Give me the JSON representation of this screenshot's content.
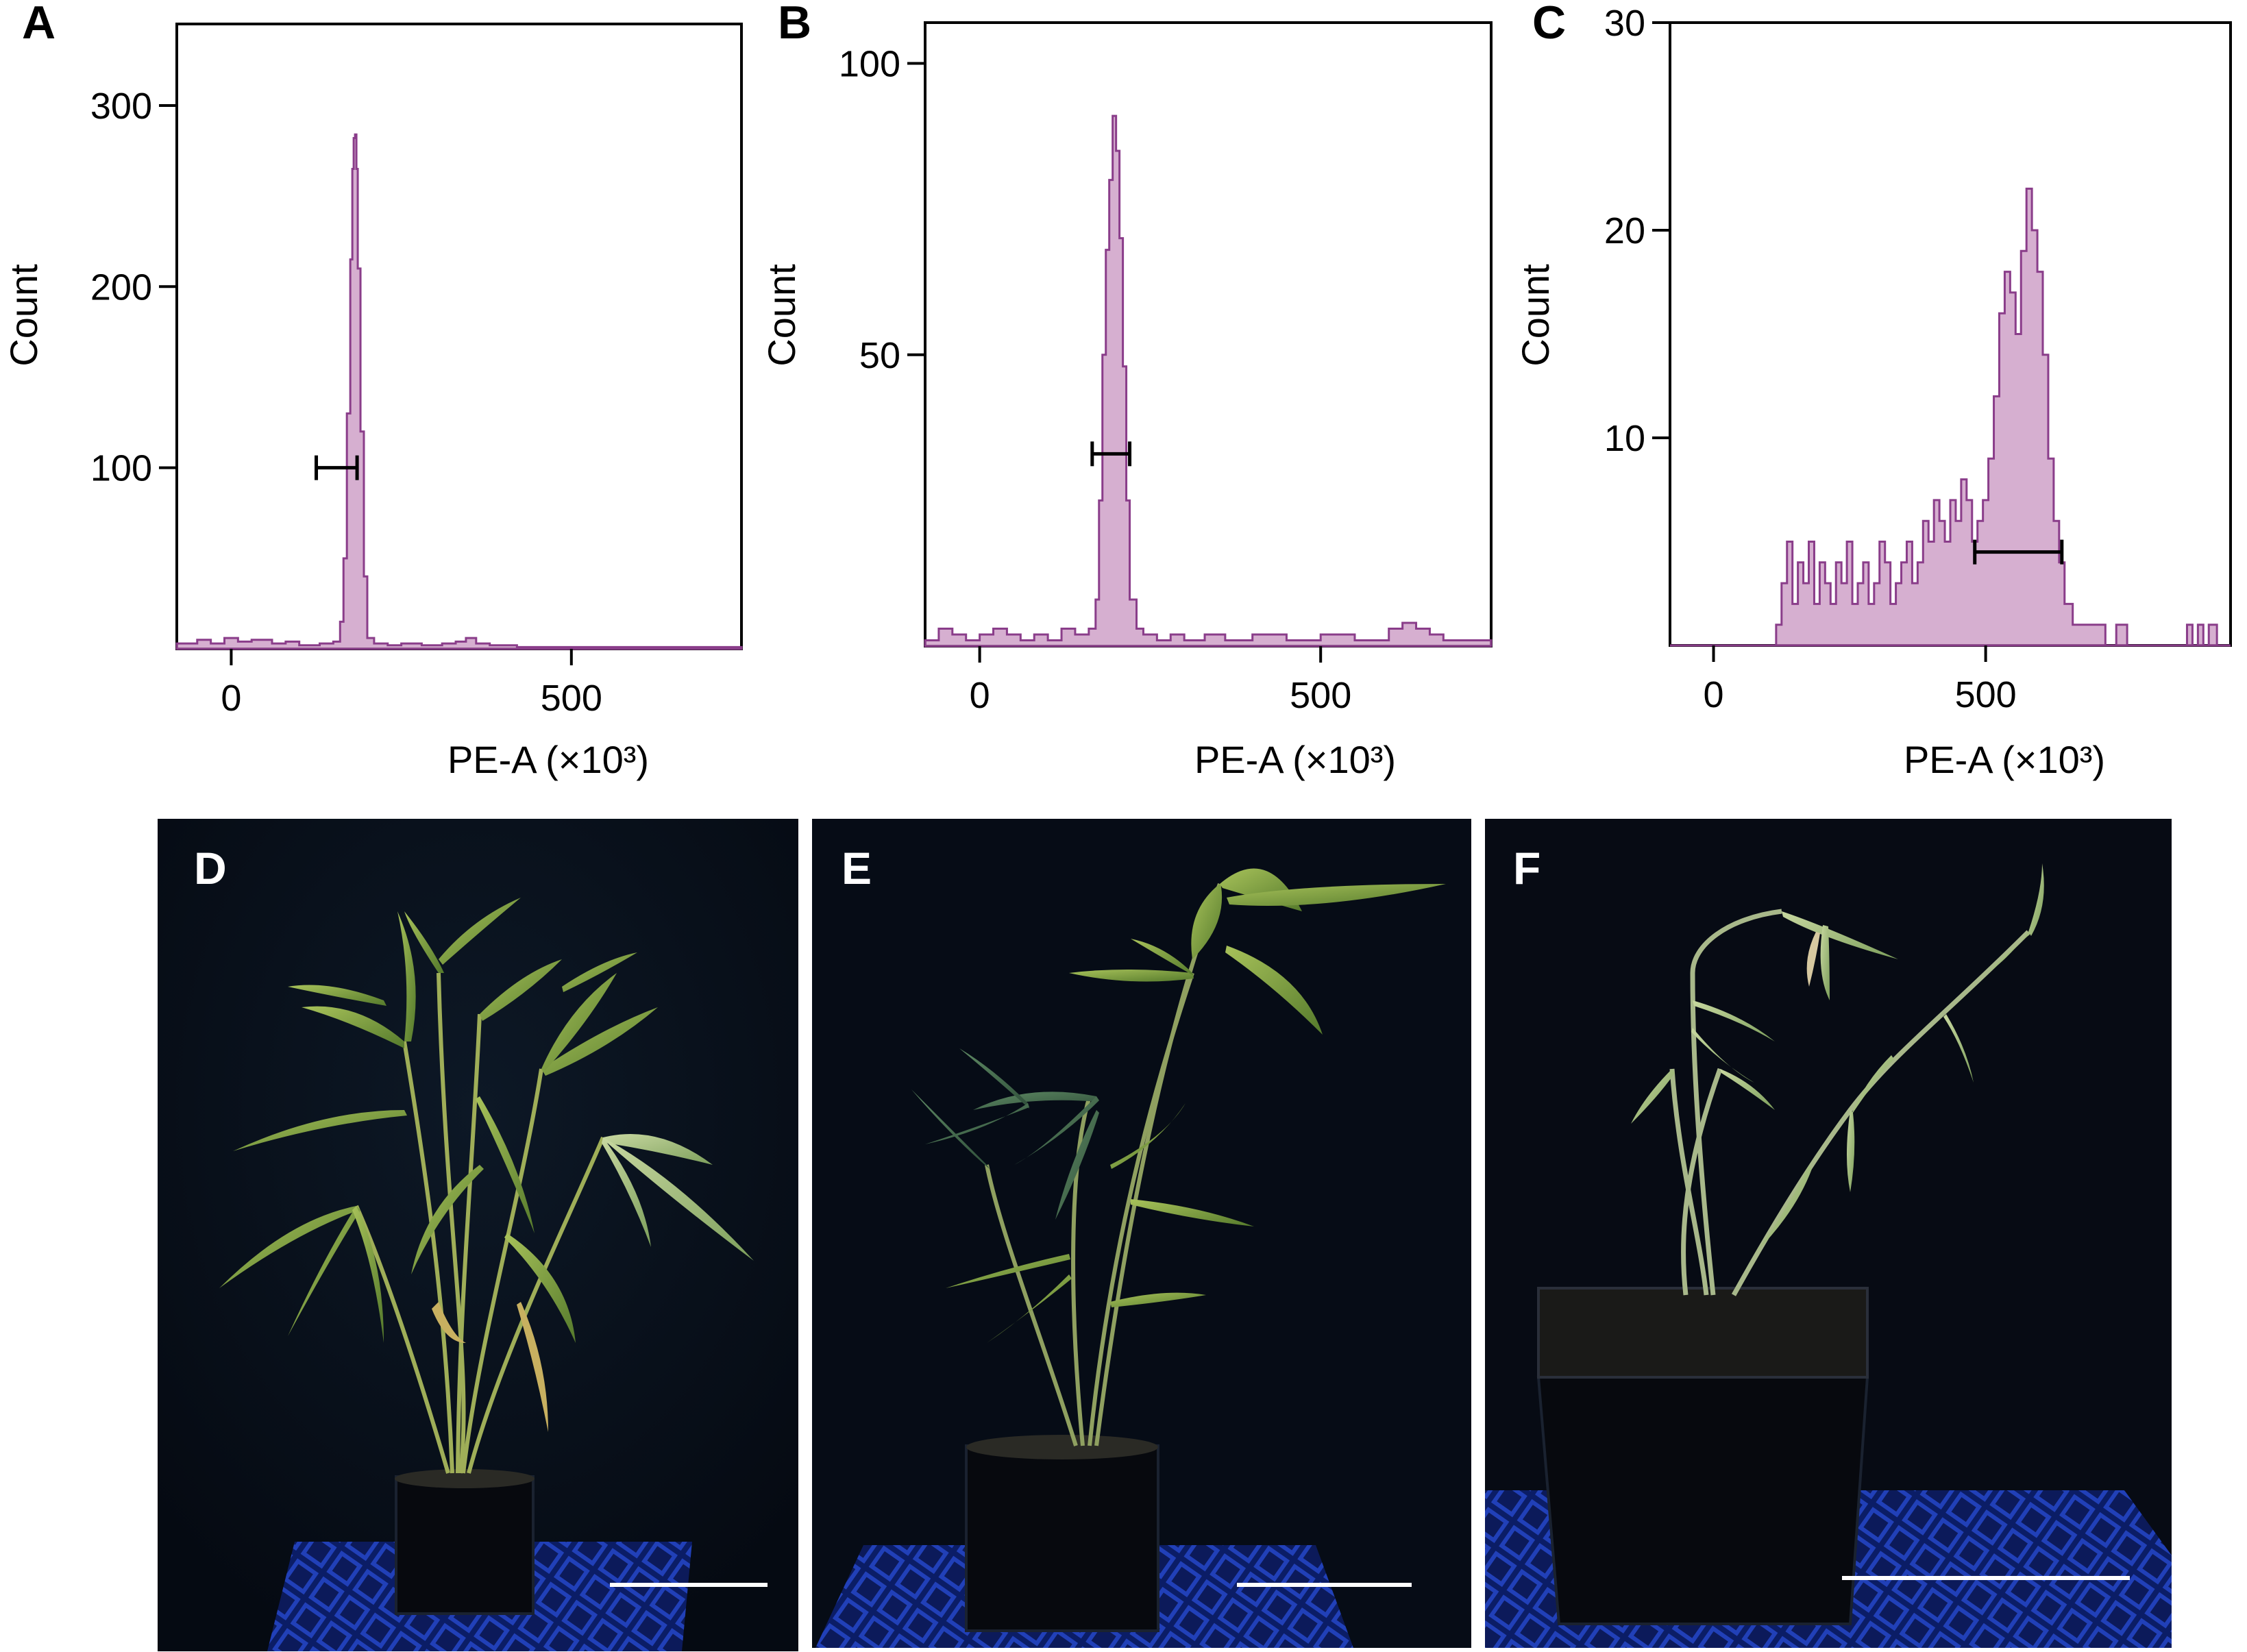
{
  "chart_data": [
    {
      "type": "area",
      "panel_label": "A",
      "xlabel": "PE-A (×10³)",
      "ylabel": "Count",
      "xlim": [
        -80,
        750
      ],
      "ylim": [
        0,
        345
      ],
      "x_ticks": [
        0,
        500
      ],
      "y_ticks": [
        100,
        200,
        300
      ],
      "x_tick_labels": [
        "0",
        "500"
      ],
      "y_tick_labels": [
        "100",
        "200",
        "300"
      ],
      "series": [
        {
          "x": [
            -80,
            -50,
            -30,
            -10,
            10,
            30,
            60,
            80,
            100,
            130,
            150,
            160,
            165,
            170,
            175,
            178,
            180,
            182,
            184,
            186,
            190,
            195,
            200,
            210,
            230,
            250,
            280,
            310,
            330,
            345,
            360,
            380,
            420,
            500,
            600,
            700,
            750
          ],
          "y": [
            3,
            5,
            3,
            6,
            4,
            5,
            3,
            4,
            2,
            3,
            4,
            15,
            50,
            130,
            215,
            265,
            282,
            284,
            265,
            210,
            120,
            40,
            6,
            3,
            2,
            3,
            2,
            3,
            4,
            6,
            3,
            2,
            1,
            1,
            1,
            1,
            1
          ]
        }
      ],
      "gate": {
        "x_range": [
          125,
          185
        ],
        "y": 100
      }
    },
    {
      "type": "area",
      "panel_label": "B",
      "xlabel": "PE-A (×10³)",
      "ylabel": "Count",
      "xlim": [
        -80,
        750
      ],
      "ylim": [
        0,
        107
      ],
      "x_ticks": [
        0,
        500
      ],
      "y_ticks": [
        50,
        100
      ],
      "x_tick_labels": [
        "0",
        "500"
      ],
      "y_tick_labels": [
        "50",
        "100"
      ],
      "series": [
        {
          "x": [
            -80,
            -60,
            -40,
            -20,
            0,
            20,
            40,
            60,
            80,
            100,
            120,
            140,
            160,
            170,
            175,
            180,
            185,
            190,
            195,
            200,
            205,
            210,
            215,
            220,
            230,
            240,
            260,
            280,
            300,
            330,
            360,
            400,
            450,
            500,
            550,
            600,
            620,
            640,
            660,
            680,
            700,
            720,
            750
          ],
          "y": [
            1,
            3,
            2,
            1,
            2,
            3,
            2,
            1,
            2,
            1,
            3,
            2,
            3,
            8,
            25,
            50,
            68,
            80,
            91,
            85,
            70,
            48,
            25,
            8,
            3,
            2,
            1,
            2,
            1,
            2,
            1,
            2,
            1,
            2,
            1,
            3,
            4,
            3,
            2,
            1,
            1,
            1,
            1
          ]
        }
      ],
      "gate": {
        "x_range": [
          165,
          220
        ],
        "y": 33
      }
    },
    {
      "type": "area",
      "panel_label": "C",
      "xlabel": "PE-A (×10³)",
      "ylabel": "Count",
      "xlim": [
        -80,
        950
      ],
      "ylim": [
        0,
        30
      ],
      "x_ticks": [
        0,
        500
      ],
      "y_ticks": [
        10,
        20,
        30
      ],
      "x_tick_labels": [
        "0",
        "500"
      ],
      "y_tick_labels": [
        "10",
        "20",
        "30"
      ],
      "series": [
        {
          "x": [
            -80,
            100,
            115,
            125,
            135,
            145,
            155,
            165,
            175,
            185,
            195,
            205,
            215,
            225,
            235,
            245,
            255,
            265,
            275,
            285,
            295,
            305,
            315,
            325,
            335,
            345,
            355,
            365,
            375,
            385,
            395,
            405,
            415,
            425,
            435,
            445,
            455,
            465,
            475,
            485,
            495,
            505,
            515,
            525,
            535,
            545,
            555,
            565,
            575,
            585,
            595,
            605,
            615,
            625,
            635,
            645,
            660,
            680,
            700,
            720,
            740,
            760,
            800,
            850,
            870,
            880,
            890,
            900,
            910,
            925,
            950
          ],
          "y": [
            0,
            0,
            1,
            3,
            5,
            2,
            4,
            3,
            5,
            2,
            4,
            3,
            2,
            4,
            3,
            5,
            2,
            3,
            4,
            2,
            3,
            5,
            4,
            2,
            3,
            4,
            5,
            3,
            4,
            6,
            5,
            7,
            6,
            5,
            7,
            6,
            8,
            7,
            5,
            6,
            7,
            9,
            12,
            16,
            18,
            17,
            15,
            19,
            22,
            20,
            18,
            14,
            9,
            6,
            4,
            2,
            1,
            1,
            1,
            0,
            1,
            0,
            0,
            0,
            1,
            0,
            1,
            0,
            1,
            0,
            0
          ]
        }
      ],
      "gate": {
        "x_range": [
          480,
          640
        ],
        "y": 4.5
      }
    }
  ],
  "photos": [
    {
      "label": "D",
      "tone": "lush-green-plant"
    },
    {
      "label": "E",
      "tone": "tall-green-plant"
    },
    {
      "label": "F",
      "tone": "sparse-plant"
    }
  ]
}
